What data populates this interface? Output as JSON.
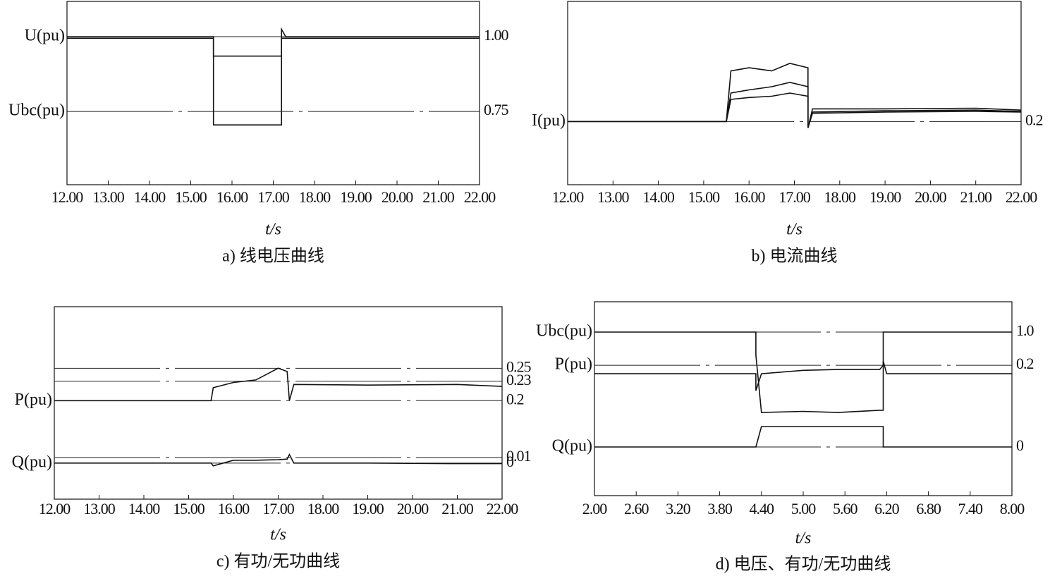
{
  "chart_data": [
    {
      "type": "line",
      "caption": "a) 线电压曲线",
      "xlabel": "t/s",
      "x": [
        12,
        15.55,
        15.55,
        17.2,
        17.2,
        17.3,
        22
      ],
      "xlim": [
        12,
        22
      ],
      "xticks": [
        {
          "value": 12,
          "label": "12.00"
        },
        {
          "value": 13,
          "label": "13.00"
        },
        {
          "value": 14,
          "label": "14.00"
        },
        {
          "value": 15,
          "label": "15.00"
        },
        {
          "value": 16,
          "label": "16.00"
        },
        {
          "value": 17,
          "label": "17.00"
        },
        {
          "value": 18,
          "label": "18.00"
        },
        {
          "value": 19,
          "label": "19.00"
        },
        {
          "value": 20,
          "label": "20.00"
        },
        {
          "value": 21,
          "label": "21.00"
        },
        {
          "value": 22,
          "label": "22.00"
        }
      ],
      "ylim": [
        0.505,
        1.118
      ],
      "yticks": [
        {
          "value": 1,
          "label": "1.00"
        },
        0.75
      ],
      "grid": true,
      "series": [
        {
          "name": "U(pu)",
          "color": "#111111",
          "values": [
            1.0,
            1.0,
            0.935,
            0.935,
            1.025,
            1.0,
            1.0
          ]
        },
        {
          "name": "Ubc(pu)",
          "color": "#111111",
          "values": [
            0.995,
            0.995,
            0.705,
            0.705,
            0.995,
            0.995,
            0.995
          ]
        }
      ]
    },
    {
      "type": "line",
      "caption": "b) 电流曲线",
      "xlabel": "t/s",
      "x": [
        12,
        15.5,
        15.6,
        16.0,
        16.5,
        16.9,
        17.3,
        17.3,
        17.4,
        19,
        21,
        22
      ],
      "xlim": [
        12,
        22
      ],
      "xticks": [
        {
          "value": 12,
          "label": "12.00"
        },
        {
          "value": 13,
          "label": "13.00"
        },
        {
          "value": 14,
          "label": "14.00"
        },
        {
          "value": 15,
          "label": "15.00"
        },
        {
          "value": 16,
          "label": "16.00"
        },
        {
          "value": 17,
          "label": "17.00"
        },
        {
          "value": 18,
          "label": "18.00"
        },
        {
          "value": 19,
          "label": "19.00"
        },
        {
          "value": 20,
          "label": "20.00"
        },
        {
          "value": 21,
          "label": "21.00"
        },
        {
          "value": 22,
          "label": "22.00"
        }
      ],
      "ylim": [
        0.1,
        0.39
      ],
      "yticks": [
        0.2
      ],
      "grid": true,
      "series": [
        {
          "name": "I(pu)",
          "color": "#111111",
          "values": [
            0.2,
            0.2,
            0.28,
            0.285,
            0.28,
            0.292,
            0.285,
            0.19,
            0.22,
            0.22,
            0.221,
            0.218
          ]
        },
        {
          "color": "#111111",
          "values": [
            0.2,
            0.2,
            0.245,
            0.25,
            0.255,
            0.262,
            0.255,
            0.19,
            0.215,
            0.217,
            0.218,
            0.216
          ]
        },
        {
          "color": "#111111",
          "values": [
            0.2,
            0.2,
            0.235,
            0.238,
            0.24,
            0.245,
            0.24,
            0.19,
            0.213,
            0.215,
            0.216,
            0.215
          ]
        }
      ]
    },
    {
      "type": "line",
      "caption": "c) 有功/无功曲线",
      "xlabel": "t/s",
      "x": [
        12,
        15.5,
        15.55,
        16,
        16.5,
        17,
        17.2,
        17.25,
        17.35,
        19,
        21,
        22
      ],
      "xlim": [
        12,
        22
      ],
      "xticks": [
        {
          "value": 12,
          "label": "12.00"
        },
        {
          "value": 13,
          "label": "13.00"
        },
        {
          "value": 14,
          "label": "14.00"
        },
        {
          "value": 15,
          "label": "15.00"
        },
        {
          "value": 16,
          "label": "16.00"
        },
        {
          "value": 17,
          "label": "17.00"
        },
        {
          "value": 18,
          "label": "18.00"
        },
        {
          "value": 19,
          "label": "19.00"
        },
        {
          "value": 20,
          "label": "20.00"
        },
        {
          "value": 21,
          "label": "21.00"
        },
        {
          "value": 22,
          "label": "22.00"
        }
      ],
      "ylim": [
        0.048,
        0.345
      ],
      "yticks": [
        0.2,
        0.23,
        0.25
      ],
      "y2lim": [
        -0.064,
        0.2775
      ],
      "y2ticks": [
        0,
        0.01
      ],
      "grid": true,
      "series": [
        {
          "name": "P(pu)",
          "color": "#111111",
          "values": [
            0.2,
            0.2,
            0.22,
            0.228,
            0.232,
            0.25,
            0.245,
            0.2,
            0.225,
            0.224,
            0.225,
            0.222
          ]
        },
        {
          "name": "Q(pu)",
          "color": "#111111",
          "axis": "y2",
          "values": [
            0,
            0,
            -0.005,
            0.005,
            0.005,
            0.006,
            0.007,
            0.015,
            0,
            0,
            -0.001,
            -0.001
          ]
        }
      ]
    },
    {
      "type": "line",
      "caption": "d) 电压、有功/无功曲线",
      "xlabel": "t/s",
      "x": [
        2,
        4.32,
        4.32,
        4.4,
        5,
        5.5,
        6.1,
        6.15,
        6.15,
        6.2,
        8
      ],
      "xlim": [
        2,
        8
      ],
      "xticks": [
        {
          "value": 2,
          "label": "2.00"
        },
        {
          "value": 2.6,
          "label": "2.60"
        },
        {
          "value": 3.2,
          "label": "3.20"
        },
        {
          "value": 3.8,
          "label": "3.80"
        },
        {
          "value": 4.4,
          "label": "4.40"
        },
        {
          "value": 5,
          "label": "5.00"
        },
        {
          "value": 5.6,
          "label": "5.60"
        },
        {
          "value": 6.2,
          "label": "6.20"
        },
        {
          "value": 6.8,
          "label": "6.80"
        },
        {
          "value": 7.4,
          "label": "7.40"
        },
        {
          "value": 8,
          "label": "8.00"
        }
      ],
      "ylim": [
        -0.423,
        1.264
      ],
      "yticks": [
        {
          "value": 1,
          "label": "1.0"
        }
      ],
      "y2lim": [
        0.046,
        0.275
      ],
      "y2ticks": [
        0.2
      ],
      "y3lim": [
        -0.238,
        0.71
      ],
      "y3ticks": [
        0
      ],
      "grid": true,
      "series": [
        {
          "name": "Ubc(pu)",
          "color": "#111111",
          "values": [
            1,
            1,
            0.8,
            0.3,
            0.31,
            0.3,
            0.32,
            0.32,
            1.0,
            1.0,
            1.0
          ]
        },
        {
          "name": "P(pu)",
          "color": "#111111",
          "axis": "y2",
          "values": [
            0.19,
            0.19,
            0.17,
            0.19,
            0.194,
            0.195,
            0.195,
            0.2,
            0.205,
            0.19,
            0.19
          ]
        },
        {
          "name": "Q(pu)",
          "color": "#111111",
          "axis": "y3",
          "values": [
            0,
            0,
            0,
            0.1,
            0.1,
            0.1,
            0.1,
            0.1,
            0,
            0,
            0
          ]
        }
      ]
    }
  ]
}
